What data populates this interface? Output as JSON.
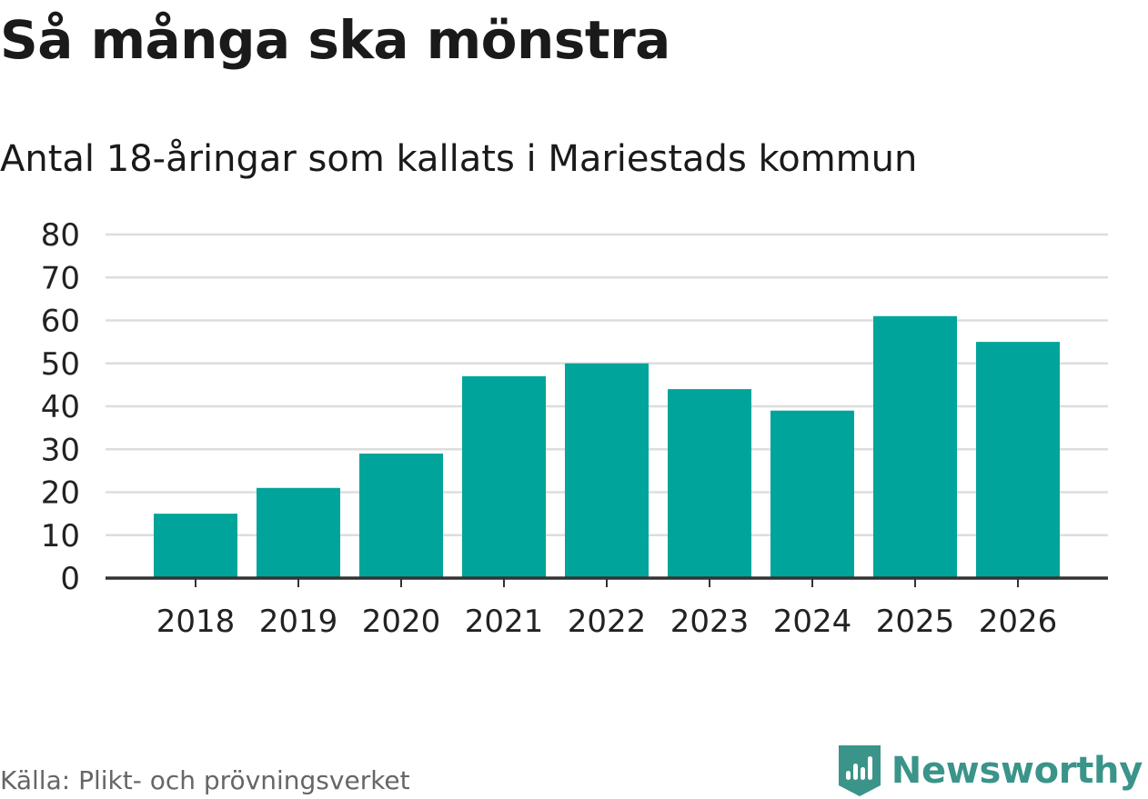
{
  "header": {
    "title": "Så många ska mönstra",
    "subtitle": "Antal 18-åringar som kallats i Mariestads kommun"
  },
  "footer": {
    "source": "Källa: Plikt- och prövningsverket",
    "brand": "Newsworthy",
    "brand_icon": "newsworthy-logo-icon",
    "brand_color": "#3a948a"
  },
  "chart_data": {
    "type": "bar",
    "title": "Så många ska mönstra",
    "subtitle": "Antal 18-åringar som kallats i Mariestads kommun",
    "xlabel": "",
    "ylabel": "",
    "categories": [
      "2018",
      "2019",
      "2020",
      "2021",
      "2022",
      "2023",
      "2024",
      "2025",
      "2026"
    ],
    "values": [
      15,
      21,
      29,
      47,
      50,
      44,
      39,
      61,
      55
    ],
    "ylim": [
      0,
      80
    ],
    "yticks": [
      0,
      10,
      20,
      30,
      40,
      50,
      60,
      70,
      80
    ],
    "grid": true,
    "bar_color": "#00a49a",
    "grid_color": "#dddddd",
    "axis_color": "#333333"
  }
}
